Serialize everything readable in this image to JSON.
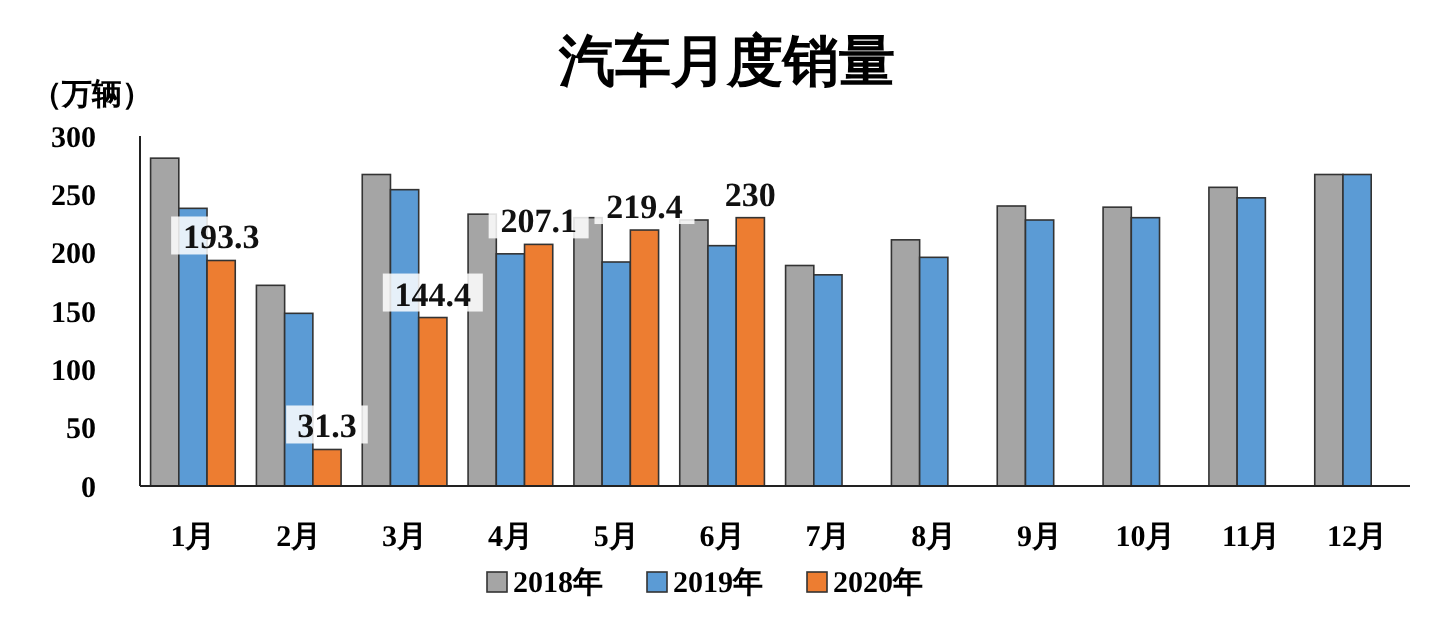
{
  "chart_data": {
    "type": "bar",
    "title": "汽车月度销量",
    "ylabel": "（万辆）",
    "categories": [
      "1月",
      "2月",
      "3月",
      "4月",
      "5月",
      "6月",
      "7月",
      "8月",
      "9月",
      "10月",
      "11月",
      "12月"
    ],
    "series": [
      {
        "name": "2018年",
        "color": "#a5a5a5",
        "values": [
          281,
          172,
          267,
          233,
          230,
          228,
          189,
          211,
          240,
          239,
          256,
          267
        ]
      },
      {
        "name": "2019年",
        "color": "#5b9bd5",
        "values": [
          238,
          148,
          254,
          199,
          192,
          206,
          181,
          196,
          228,
          230,
          247,
          267
        ]
      },
      {
        "name": "2020年",
        "color": "#ed7d31",
        "values": [
          193.3,
          31.3,
          144.4,
          207.1,
          219.4,
          230,
          null,
          null,
          null,
          null,
          null,
          null
        ],
        "value_labels": [
          "193.3",
          "31.3",
          "144.4",
          "207.1",
          "219.4",
          "230",
          null,
          null,
          null,
          null,
          null,
          null
        ]
      }
    ],
    "ylim": [
      0,
      300
    ],
    "yticks": [
      0,
      50,
      100,
      150,
      200,
      250,
      300
    ],
    "grid": false,
    "legend": "bottom"
  }
}
